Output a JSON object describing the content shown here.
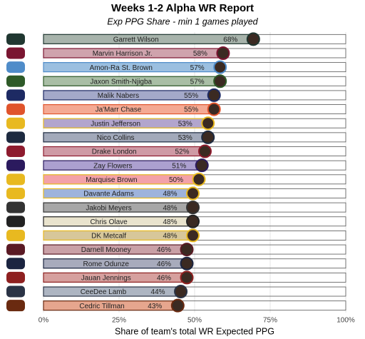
{
  "chart_data": {
    "type": "barh",
    "title": "Weeks 1-2 Alpha WR Report",
    "subtitle": "Exp PPG Share - min 1 games played",
    "x_label": "Share of team's total WR Expected PPG",
    "categories": [
      "Garrett Wilson",
      "Marvin Harrison Jr.",
      "Amon-Ra St. Brown",
      "Jaxon Smith-Njigba",
      "Malik Nabers",
      "Ja'Marr Chase",
      "Justin Jefferson",
      "Nico Collins",
      "Drake London",
      "Zay Flowers",
      "Marquise Brown",
      "Davante Adams",
      "Jakobi Meyers",
      "Chris Olave",
      "DK Metcalf",
      "Darnell Mooney",
      "Rome Odunze",
      "Jauan Jennings",
      "CeeDee Lamb",
      "Cedric Tillman"
    ],
    "values": [
      68,
      58,
      57,
      57,
      55,
      55,
      53,
      53,
      52,
      51,
      50,
      48,
      48,
      48,
      48,
      46,
      46,
      46,
      44,
      43
    ],
    "value_labels": [
      "68%",
      "58%",
      "57%",
      "57%",
      "55%",
      "55%",
      "53%",
      "53%",
      "52%",
      "51%",
      "50%",
      "48%",
      "48%",
      "48%",
      "48%",
      "46%",
      "46%",
      "46%",
      "44%",
      "43%"
    ],
    "colors": [
      "#a7b3ab",
      "#cfa3ad",
      "#9bbfe0",
      "#a9bea5",
      "#a4a9c9",
      "#f4a993",
      "#b2a5cd",
      "#a2a9ba",
      "#cf9aa5",
      "#aca0cf",
      "#f3a1a8",
      "#9eb3dc",
      "#a7a7a7",
      "#e9e3cd",
      "#d7c79a",
      "#c9a0a6",
      "#a8abbc",
      "#d6a09e",
      "#adb5c2",
      "#e6a68e"
    ],
    "border_colors": [
      "#203731",
      "#7a1531",
      "#4f8cc9",
      "#2e5a28",
      "#1d2a63",
      "#e0542c",
      "#e8b920",
      "#1d2a40",
      "#8e1b2e",
      "#2b1a5e",
      "#e8b920",
      "#e8b920",
      "#333333",
      "#222222",
      "#e8b920",
      "#5a1a24",
      "#1b2440",
      "#8e2020",
      "#2a3345",
      "#6a2a10"
    ],
    "xlim": [
      0,
      100
    ],
    "xticks": [
      {
        "value": 0,
        "label": "0%"
      },
      {
        "value": 25,
        "label": "25%"
      },
      {
        "value": 50,
        "label": "50%"
      },
      {
        "value": 75,
        "label": "75%"
      },
      {
        "value": 100,
        "label": "100%"
      }
    ],
    "grid": true
  }
}
